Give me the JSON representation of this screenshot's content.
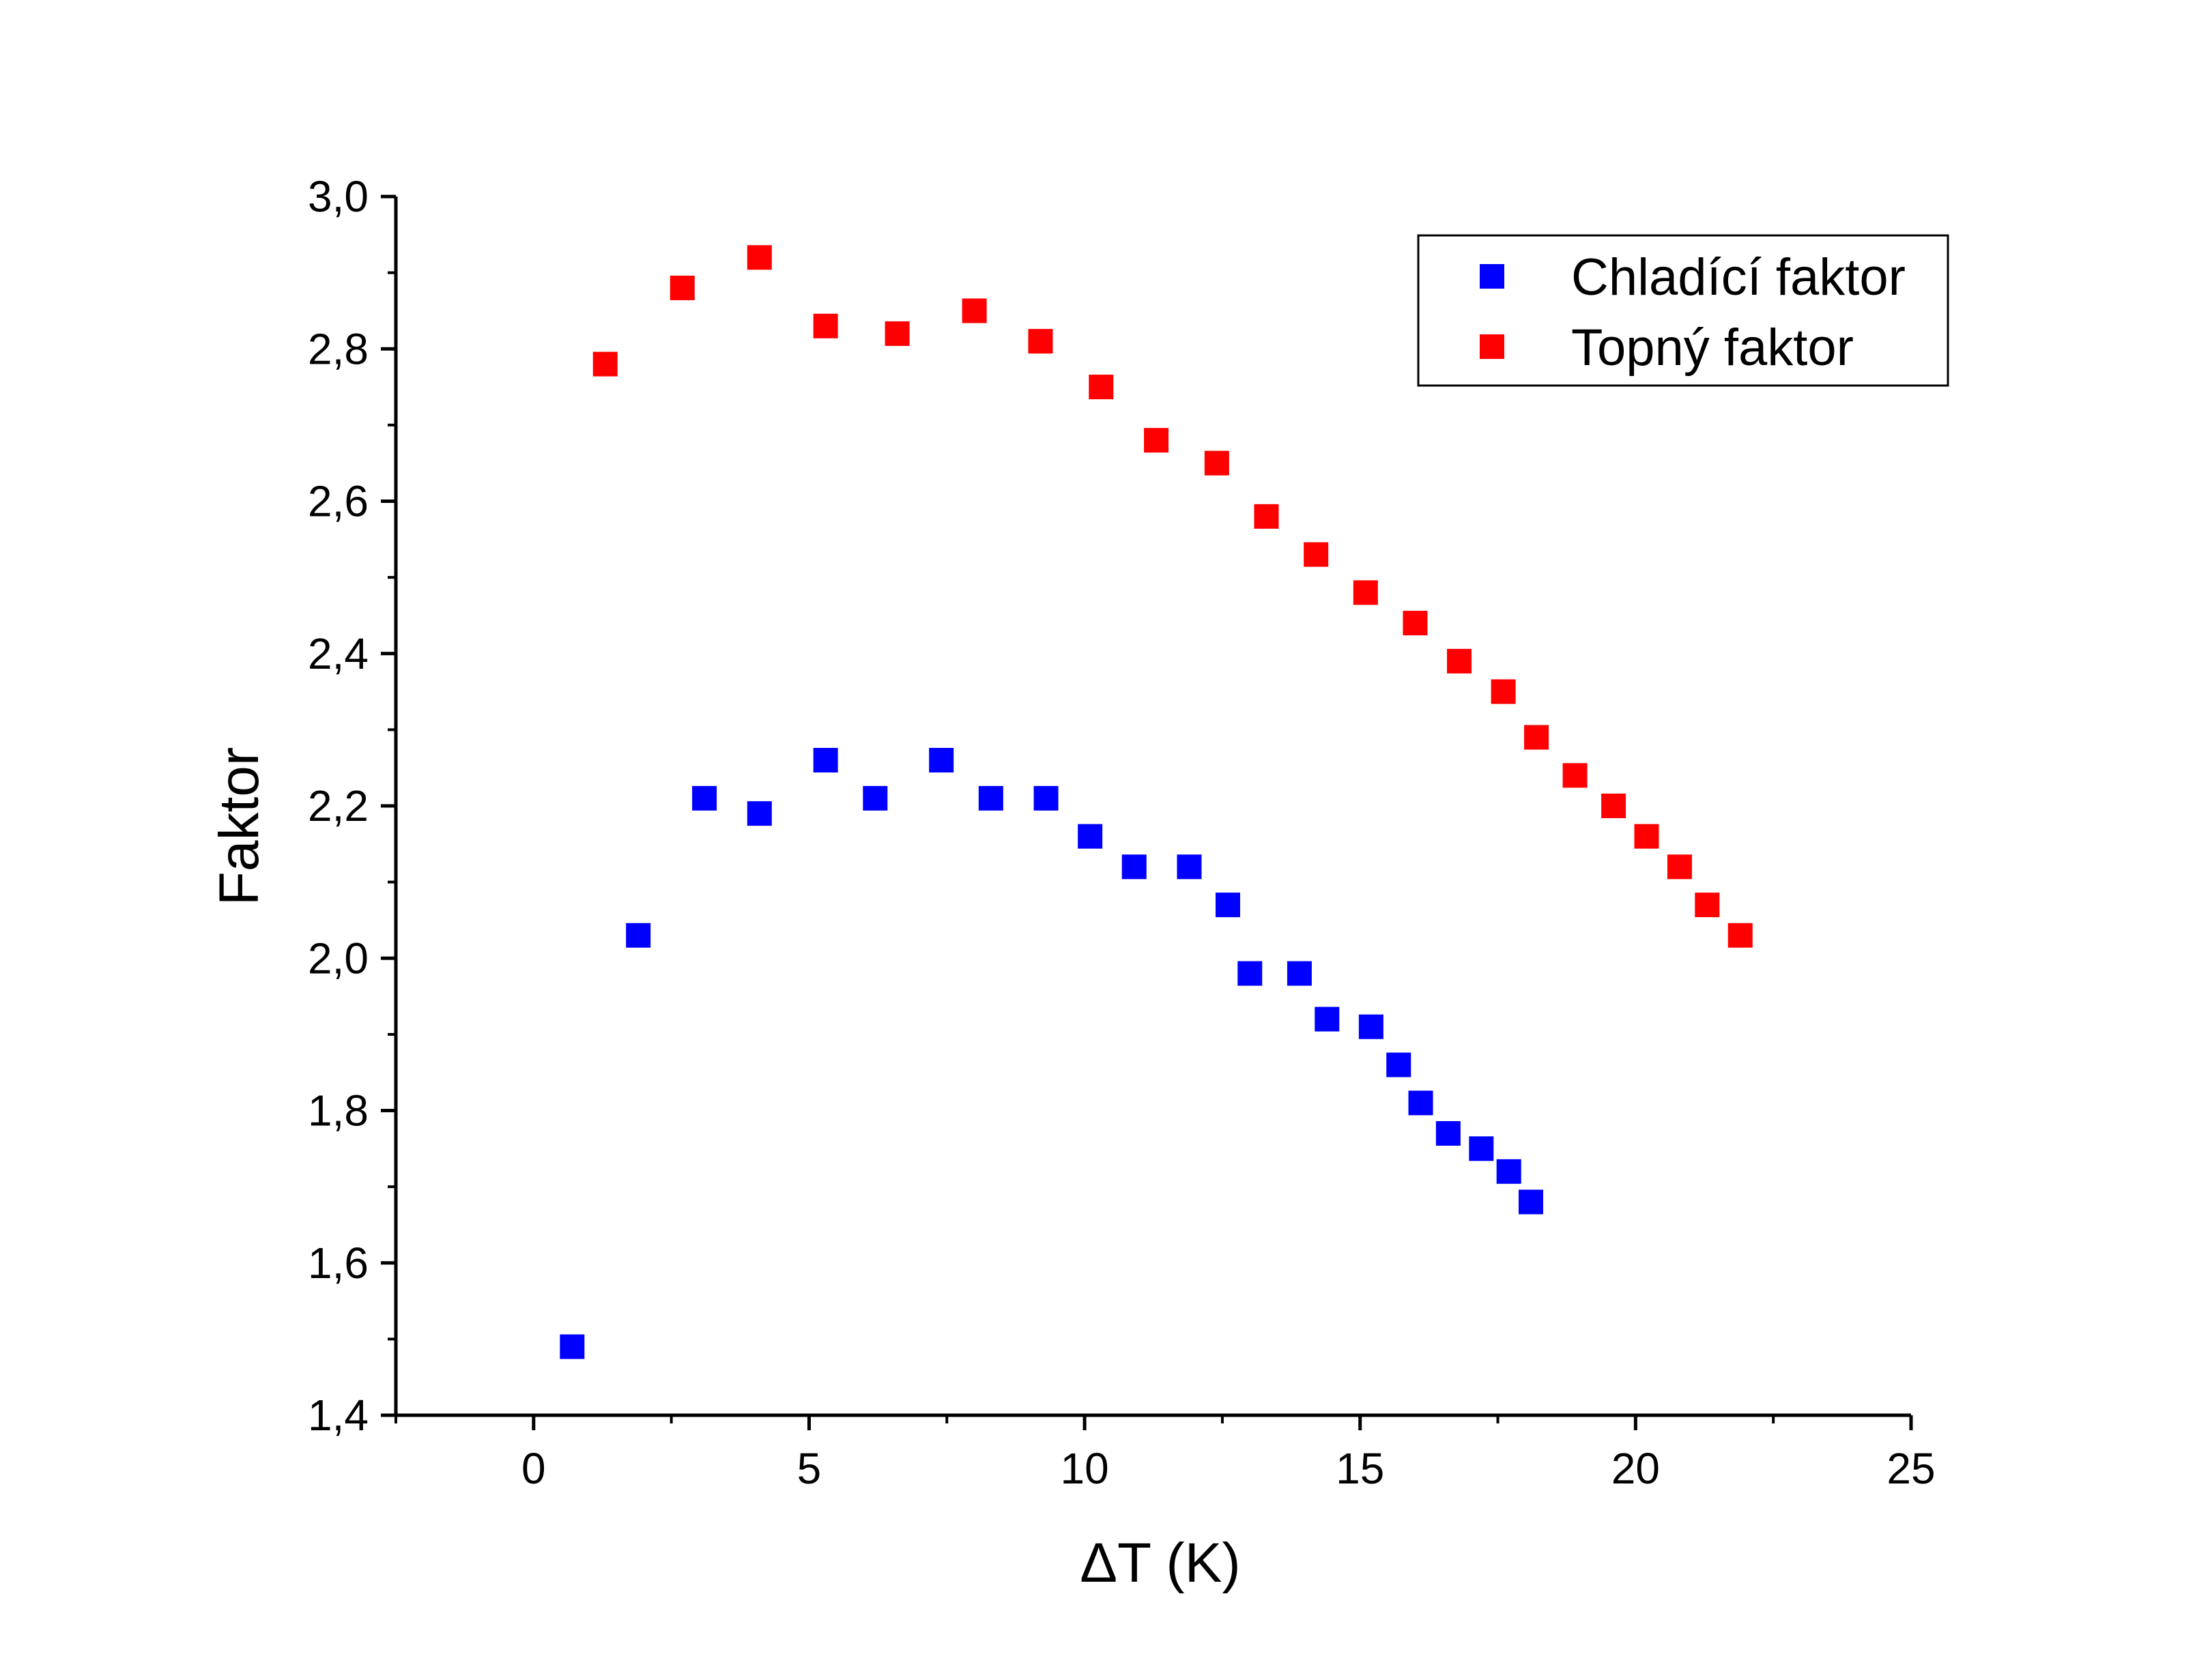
{
  "chart_data": {
    "type": "scatter",
    "title": "",
    "xlabel": "ΔT (K)",
    "ylabel": "Faktor",
    "xlim": [
      -2.5,
      25
    ],
    "ylim": [
      1.4,
      3.0
    ],
    "x_ticks": [
      0,
      5,
      10,
      15,
      20,
      25
    ],
    "x_tick_labels": [
      "0",
      "5",
      "10",
      "15",
      "20",
      "25"
    ],
    "y_ticks": [
      1.4,
      1.6,
      1.8,
      2.0,
      2.2,
      2.4,
      2.6,
      2.8,
      3.0
    ],
    "y_tick_labels": [
      "1,4",
      "1,6",
      "1,8",
      "2,0",
      "2,2",
      "2,4",
      "2,6",
      "2,8",
      "3,0"
    ],
    "grid": false,
    "legend_position": "top-right",
    "series": [
      {
        "name": "Chladící faktor",
        "color": "#0000ff",
        "marker": "square",
        "x": [
          0.7,
          1.9,
          3.1,
          4.1,
          5.3,
          6.2,
          7.4,
          8.3,
          9.3,
          10.1,
          10.9,
          11.9,
          12.6,
          13.0,
          13.9,
          14.4,
          15.2,
          15.7,
          16.1,
          16.6,
          17.2,
          17.7,
          18.1
        ],
        "y": [
          1.49,
          2.03,
          2.21,
          2.19,
          2.26,
          2.21,
          2.26,
          2.21,
          2.21,
          2.16,
          2.12,
          2.12,
          2.07,
          1.98,
          1.98,
          1.92,
          1.91,
          1.86,
          1.81,
          1.77,
          1.75,
          1.72,
          1.68
        ]
      },
      {
        "name": "Topný faktor",
        "color": "#ff0000",
        "marker": "square",
        "x": [
          1.3,
          2.7,
          4.1,
          5.3,
          6.6,
          8.0,
          9.2,
          10.3,
          11.3,
          12.4,
          13.3,
          14.2,
          15.1,
          16.0,
          16.8,
          17.6,
          18.2,
          18.9,
          19.6,
          20.2,
          20.8,
          21.3,
          21.9
        ],
        "y": [
          2.78,
          2.88,
          2.92,
          2.83,
          2.82,
          2.85,
          2.81,
          2.75,
          2.68,
          2.65,
          2.58,
          2.53,
          2.48,
          2.44,
          2.39,
          2.35,
          2.29,
          2.24,
          2.2,
          2.16,
          2.12,
          2.07,
          2.03
        ]
      }
    ]
  }
}
